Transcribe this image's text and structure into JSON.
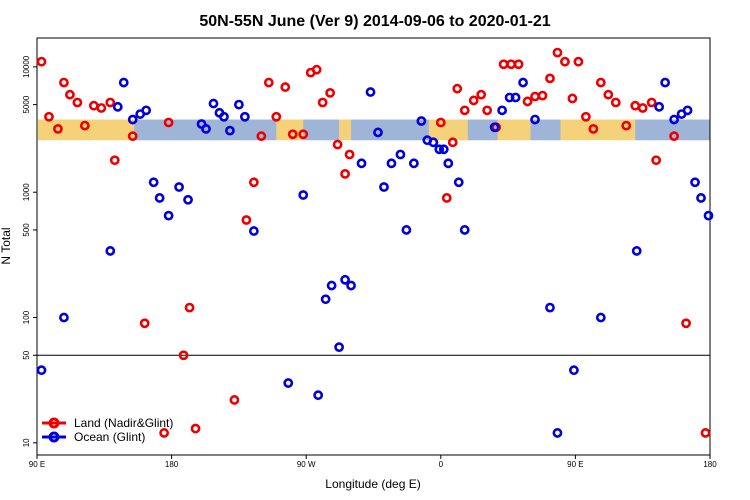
{
  "chart_data": {
    "type": "scatter",
    "title": "50N-55N June (Ver 9)   2014-09-06 to 2020-01-21",
    "xlabel": "Longitude (deg E)",
    "ylabel": "N Total",
    "x_scale": "linear",
    "y_scale": "log",
    "xlim": [
      90,
      540
    ],
    "ylim": [
      8,
      17000
    ],
    "x_ticks": [
      {
        "value": 90,
        "label": "90 E"
      },
      {
        "value": 180,
        "label": "180"
      },
      {
        "value": 270,
        "label": "90 W"
      },
      {
        "value": 360,
        "label": "0"
      },
      {
        "value": 450,
        "label": "90 E"
      },
      {
        "value": 540,
        "label": "180"
      }
    ],
    "y_ticks": [
      {
        "value": 10,
        "label": "10"
      },
      {
        "value": 50,
        "label": "50"
      },
      {
        "value": 100,
        "label": "100"
      },
      {
        "value": 500,
        "label": "500"
      },
      {
        "value": 1000,
        "label": "1000"
      },
      {
        "value": 5000,
        "label": "5000"
      },
      {
        "value": 10000,
        "label": "10000"
      }
    ],
    "reference_line": 50,
    "legend_position": "bottom-left",
    "colors": {
      "land": "#ee0000",
      "ocean": "#0000dd",
      "map_land": "#f5d27a",
      "map_ocean": "#9fb5d8"
    },
    "series": [
      {
        "name": "Land (Nadir&Glint)",
        "color": "#ee0000",
        "points": [
          [
            93,
            11000
          ],
          [
            98,
            4000
          ],
          [
            104,
            3200
          ],
          [
            108,
            7500
          ],
          [
            112,
            6000
          ],
          [
            117,
            5200
          ],
          [
            122,
            3400
          ],
          [
            128,
            4900
          ],
          [
            133,
            4700
          ],
          [
            139,
            5200
          ],
          [
            142,
            1800
          ],
          [
            154,
            2800
          ],
          [
            162,
            90
          ],
          [
            175,
            12
          ],
          [
            178,
            3600
          ],
          [
            188,
            50
          ],
          [
            192,
            120
          ],
          [
            196,
            13
          ],
          [
            222,
            22
          ],
          [
            230,
            600
          ],
          [
            235,
            1200
          ],
          [
            240,
            2800
          ],
          [
            245,
            7500
          ],
          [
            250,
            4000
          ],
          [
            256,
            6900
          ],
          [
            261,
            2900
          ],
          [
            268,
            2900
          ],
          [
            273,
            9000
          ],
          [
            277,
            9500
          ],
          [
            281,
            5200
          ],
          [
            286,
            6200
          ],
          [
            291,
            2400
          ],
          [
            296,
            1400
          ],
          [
            299,
            2000
          ],
          [
            360,
            3600
          ],
          [
            364,
            900
          ],
          [
            368,
            2500
          ],
          [
            371,
            6700
          ],
          [
            376,
            4500
          ],
          [
            382,
            5400
          ],
          [
            387,
            6000
          ],
          [
            391,
            4500
          ],
          [
            397,
            3300
          ],
          [
            402,
            10500
          ],
          [
            407,
            10500
          ],
          [
            412,
            10500
          ],
          [
            418,
            5300
          ],
          [
            423,
            5800
          ],
          [
            428,
            5900
          ],
          [
            433,
            8100
          ],
          [
            438,
            13000
          ],
          [
            443,
            11000
          ],
          [
            448,
            5600
          ],
          [
            452,
            11000
          ],
          [
            457,
            4000
          ],
          [
            462,
            3200
          ],
          [
            467,
            7500
          ],
          [
            472,
            6000
          ],
          [
            477,
            5200
          ],
          [
            484,
            3400
          ],
          [
            490,
            4900
          ],
          [
            495,
            4700
          ],
          [
            501,
            5200
          ],
          [
            504,
            1800
          ],
          [
            516,
            2800
          ],
          [
            524,
            90
          ],
          [
            537,
            12
          ]
        ]
      },
      {
        "name": "Ocean (Glint)",
        "color": "#0000dd",
        "points": [
          [
            93,
            38
          ],
          [
            108,
            100
          ],
          [
            139,
            340
          ],
          [
            144,
            4800
          ],
          [
            148,
            7500
          ],
          [
            154,
            3800
          ],
          [
            159,
            4200
          ],
          [
            163,
            4500
          ],
          [
            168,
            1200
          ],
          [
            172,
            900
          ],
          [
            178,
            650
          ],
          [
            185,
            1100
          ],
          [
            191,
            870
          ],
          [
            200,
            3500
          ],
          [
            203,
            3200
          ],
          [
            208,
            5100
          ],
          [
            212,
            4300
          ],
          [
            215,
            4000
          ],
          [
            219,
            3100
          ],
          [
            225,
            5000
          ],
          [
            229,
            4000
          ],
          [
            235,
            490
          ],
          [
            258,
            30
          ],
          [
            268,
            950
          ],
          [
            278,
            24
          ],
          [
            283,
            140
          ],
          [
            287,
            180
          ],
          [
            292,
            58
          ],
          [
            296,
            200
          ],
          [
            300,
            180
          ],
          [
            307,
            1700
          ],
          [
            313,
            6300
          ],
          [
            318,
            3000
          ],
          [
            322,
            1100
          ],
          [
            327,
            1700
          ],
          [
            333,
            2000
          ],
          [
            337,
            500
          ],
          [
            342,
            1700
          ],
          [
            347,
            3700
          ],
          [
            351,
            2600
          ],
          [
            355,
            2500
          ],
          [
            359,
            2200
          ],
          [
            362,
            2200
          ],
          [
            365,
            1700
          ],
          [
            372,
            1200
          ],
          [
            376,
            500
          ],
          [
            396,
            3300
          ],
          [
            401,
            4500
          ],
          [
            406,
            5700
          ],
          [
            410,
            5700
          ],
          [
            415,
            7500
          ],
          [
            423,
            3800
          ],
          [
            433,
            120
          ],
          [
            438,
            12
          ],
          [
            449,
            38
          ],
          [
            467,
            100
          ],
          [
            491,
            340
          ],
          [
            506,
            4800
          ],
          [
            510,
            7500
          ],
          [
            516,
            3800
          ],
          [
            521,
            4200
          ],
          [
            525,
            4500
          ],
          [
            530,
            1200
          ],
          [
            534,
            900
          ],
          [
            539,
            650
          ]
        ]
      }
    ]
  }
}
